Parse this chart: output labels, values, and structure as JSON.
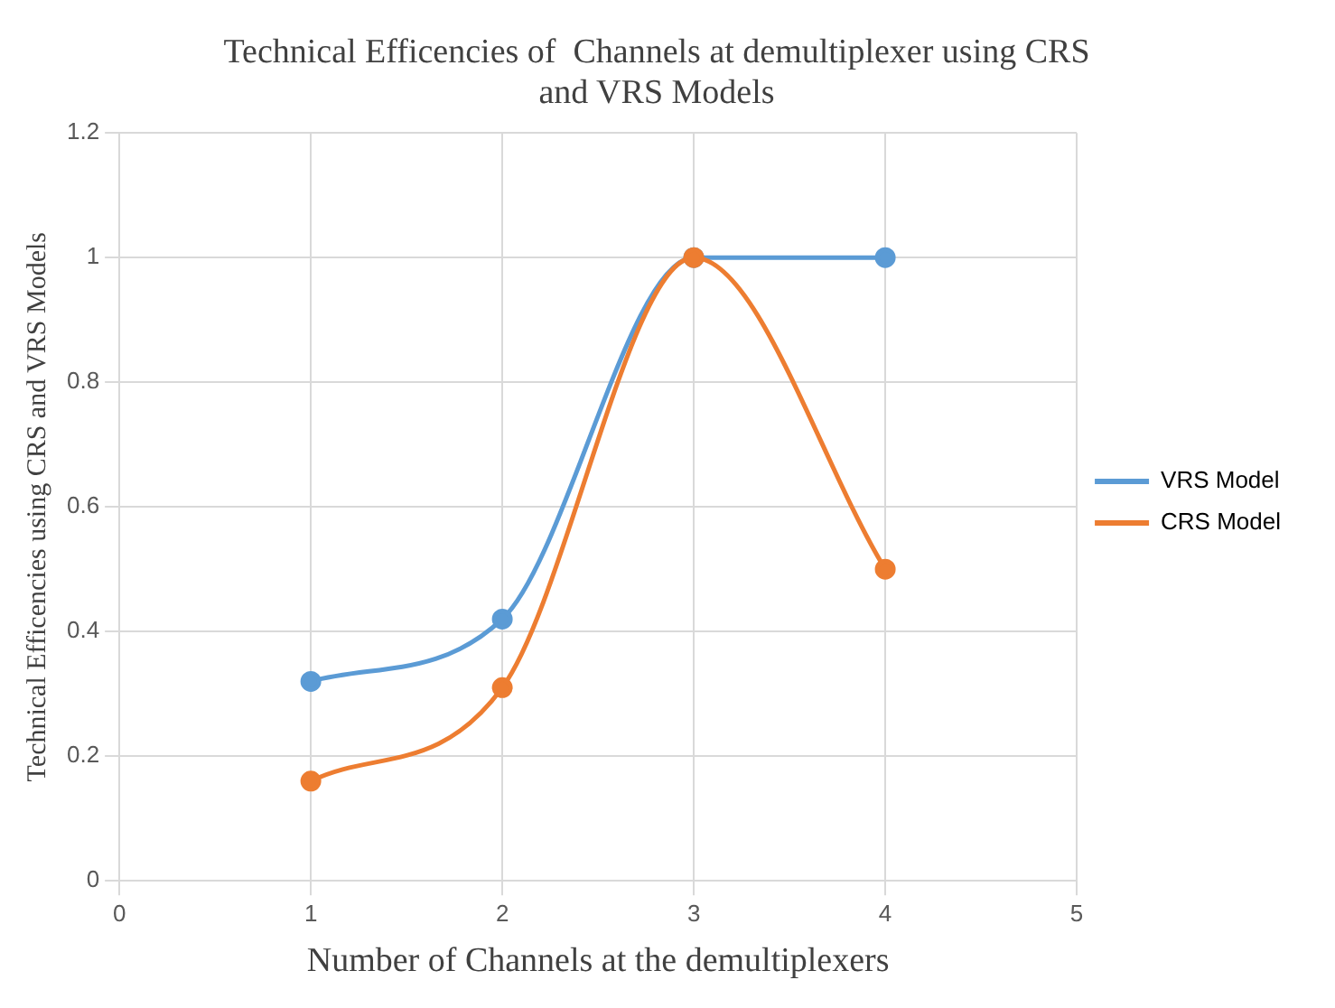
{
  "chart_data": {
    "type": "line",
    "title": "Technical Efficencies of  Channels at demultiplexer using CRS and VRS Models",
    "xlabel": "Number of Channels at the demultiplexers",
    "ylabel": "Technical Efficencies using CRS and VRS Models",
    "x": [
      1,
      2,
      3,
      4
    ],
    "series": [
      {
        "name": "VRS Model",
        "color": "#5b9bd5",
        "values": [
          0.32,
          0.42,
          1,
          1
        ]
      },
      {
        "name": "CRS Model",
        "color": "#ed7d31",
        "values": [
          0.16,
          0.31,
          1,
          0.5
        ]
      }
    ],
    "xlim": [
      0,
      5
    ],
    "xticks": [
      0,
      1,
      2,
      3,
      4,
      5
    ],
    "ylim": [
      0,
      1.2
    ],
    "yticks": [
      0,
      0.2,
      0.4,
      0.6,
      0.8,
      1,
      1.2
    ],
    "grid": true,
    "legend": "right",
    "marker": "circle"
  }
}
